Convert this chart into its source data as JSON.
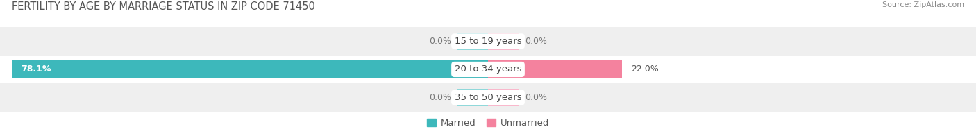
{
  "title": "FERTILITY BY AGE BY MARRIAGE STATUS IN ZIP CODE 71450",
  "source": "Source: ZipAtlas.com",
  "rows": [
    {
      "label": "15 to 19 years",
      "married": 0.0,
      "unmarried": 0.0
    },
    {
      "label": "20 to 34 years",
      "married": 78.1,
      "unmarried": 22.0
    },
    {
      "label": "35 to 50 years",
      "married": 0.0,
      "unmarried": 0.0
    }
  ],
  "xlim": [
    -80.0,
    80.0
  ],
  "married_color": "#3db8bb",
  "married_stub_color": "#90d8da",
  "unmarried_color": "#f4829e",
  "unmarried_stub_color": "#f9b8cc",
  "legend_married": "Married",
  "legend_unmarried": "Unmarried",
  "title_fontsize": 10.5,
  "source_fontsize": 8,
  "label_fontsize": 9.5,
  "value_fontsize": 9,
  "tick_fontsize": 9,
  "bar_height": 0.62,
  "stub_size": 5.0,
  "bg_color": "#ffffff",
  "row_bg_colors": [
    "#efefef",
    "#ffffff",
    "#efefef"
  ],
  "row_sep_color": "#ffffff"
}
